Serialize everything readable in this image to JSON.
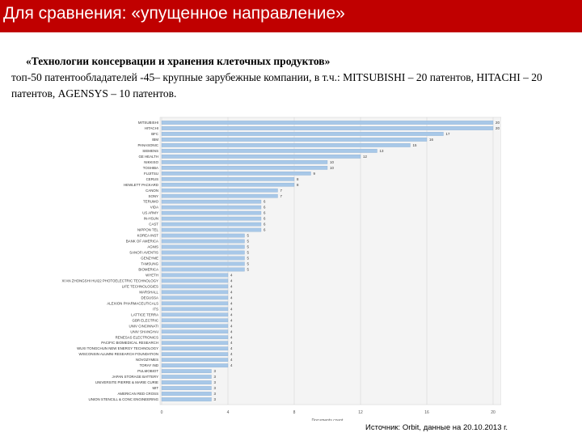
{
  "header": {
    "title": "Для сравнения: «упущенное направление»"
  },
  "subtitle": {
    "line1": "«Технологии консервации и хранения клеточных продуктов»",
    "line2": "топ-50 патентообладателей -45– крупные зарубежные компании, в т.ч.: MITSUBISHI – 20 патентов, HITACHI – 20 патентов, AGENSYS – 10 патентов."
  },
  "source": "Источник: Orbit, данные на 20.10.2013 г.",
  "colors": {
    "header": "#c00000",
    "bar": "#a8c8e8",
    "plot_bg": "#f4f4f4"
  },
  "chart_data": {
    "type": "bar",
    "orientation": "horizontal",
    "xlabel": "Documents count",
    "xlim": [
      0,
      20
    ],
    "xticks": [
      0,
      4,
      8,
      12,
      16,
      20
    ],
    "grid": true,
    "categories": [
      "MITSUBISHI",
      "HITACHI",
      "BFC",
      "IBM",
      "PANASONIC",
      "SIEMENS",
      "GE HEALTH",
      "NIKKISO",
      "TOSHIBA",
      "FUJITSU",
      "CERUS",
      "HEWLETT PACKARD",
      "CANON",
      "SONY",
      "TERUMO",
      "VIDA",
      "US ARMY",
      "IN-HSUN",
      "CAST",
      "NIPPON TEL",
      "KOREA INST",
      "BANK OF AMERICA",
      "AGNIS",
      "SANOFI AVENTIS",
      "GENZYME",
      "TAMSUNG",
      "BIOMERICA",
      "WYETH",
      "XI'AN ZHONGSHI HUI22 PHOTOELECTRIC TECHNOLOGY",
      "LIFE TECHNOLOGIES",
      "MARSHALL",
      "DEGUSSA",
      "ALEXION PHARMACEUTICALS",
      "ITS",
      "LATTICE TERRA",
      "GBR ELECTRIC",
      "UNIV CINCINNATI",
      "UNIV SHANGHAI",
      "RENESAS ELECTRONICS",
      "PACIFIC BIOMEDICAL RESEARCH",
      "WUXI TONGCHUN NEW ENERGY TECHNOLOGY",
      "WISCONSIN ALUMNI RESEARCH FOUNDATION",
      "NOVOZYMES",
      "TORAY IND",
      "PULMOBIOT",
      "JAPAN STORAGE BATTERY",
      "UNIVERSITE PIERRE & MARIE CURIE",
      "MIT",
      "AMERICAN RED CROSS",
      "UNION STENCILL & CONC ENGINEERING"
    ],
    "values": [
      20,
      20,
      17,
      16,
      15,
      13,
      12,
      10,
      10,
      9,
      8,
      8,
      7,
      7,
      6,
      6,
      6,
      6,
      6,
      6,
      5,
      5,
      5,
      5,
      5,
      5,
      5,
      4,
      4,
      4,
      4,
      4,
      4,
      4,
      4,
      4,
      4,
      4,
      4,
      4,
      4,
      4,
      4,
      4,
      3,
      3,
      3,
      3,
      3,
      3
    ]
  }
}
